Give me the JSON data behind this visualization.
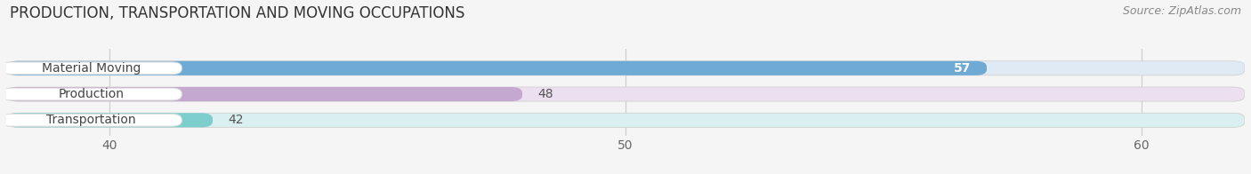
{
  "title": "PRODUCTION, TRANSPORTATION AND MOVING OCCUPATIONS",
  "source": "Source: ZipAtlas.com",
  "categories": [
    "Material Moving",
    "Production",
    "Transportation"
  ],
  "values": [
    57,
    48,
    42
  ],
  "bar_colors": [
    "#6eaad4",
    "#c5a8d0",
    "#7ecece"
  ],
  "track_colors": [
    "#e0eaf5",
    "#ece0f0",
    "#daf0f0"
  ],
  "label_bg_color": "#ffffff",
  "xlim": [
    38.0,
    62.0
  ],
  "xticks": [
    40,
    50,
    60
  ],
  "value_inside": [
    true,
    false,
    false
  ],
  "background_color": "#f5f5f5",
  "bar_area_bg": "#f5f5f5",
  "title_fontsize": 12,
  "source_fontsize": 9,
  "tick_fontsize": 10,
  "bar_label_fontsize": 10,
  "value_fontsize": 10
}
